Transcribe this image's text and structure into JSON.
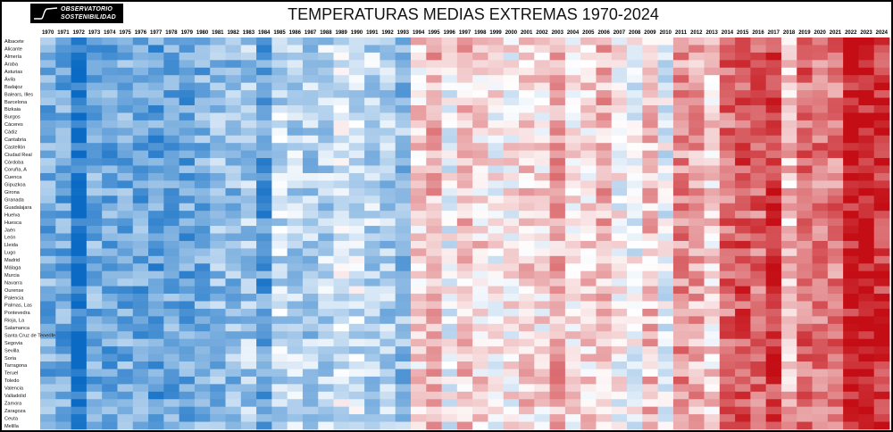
{
  "logo": {
    "line1": "OBSERVATORIO",
    "line2": "SOSTENIBILIDAD"
  },
  "chart_data": {
    "type": "heatmap",
    "title": "TEMPERATURAS  MEDIAS EXTREMAS 1970-2024",
    "x": [
      1970,
      1971,
      1972,
      1973,
      1974,
      1975,
      1976,
      1977,
      1978,
      1979,
      1980,
      1981,
      1982,
      1983,
      1984,
      1985,
      1986,
      1987,
      1988,
      1989,
      1990,
      1991,
      1992,
      1993,
      1994,
      1995,
      1996,
      1997,
      1998,
      1999,
      2000,
      2001,
      2002,
      2003,
      2004,
      2005,
      2006,
      2007,
      2008,
      2009,
      2010,
      2011,
      2012,
      2013,
      2014,
      2015,
      2016,
      2017,
      2018,
      2019,
      2020,
      2021,
      2022,
      2023,
      2024
    ],
    "y": [
      "Albacete",
      "Alicante",
      "Almería",
      "Araba",
      "Asturias",
      "Ávila",
      "Badajoz",
      "Balears, Illes",
      "Barcelona",
      "Bizkaia",
      "Burgos",
      "Cáceres",
      "Cádiz",
      "Cantabria",
      "Castellón",
      "Ciudad Real",
      "Córdoba",
      "Coruña, A",
      "Cuenca",
      "Gipuzkoa",
      "Girona",
      "Granada",
      "Guadalajara",
      "Huelva",
      "Huesca",
      "Jaén",
      "León",
      "Lleida",
      "Lugo",
      "Madrid",
      "Málaga",
      "Murcia",
      "Navarra",
      "Ourense",
      "Palencia",
      "Palmas, Las",
      "Pontevedra",
      "Rioja, La",
      "Salamanca",
      "Santa Cruz de Tenerife",
      "Segovia",
      "Sevilla",
      "Soria",
      "Tarragona",
      "Teruel",
      "Toledo",
      "Valencia",
      "Valladolid",
      "Zamora",
      "Zaragoza",
      "Ceuta",
      "Melilla"
    ],
    "color_scale": {
      "cold": "#0b6bc4",
      "neutral": "#ffffff",
      "hot": "#c40d14"
    },
    "value_range": [
      -1,
      1
    ],
    "year_anomaly": [
      -0.55,
      -0.6,
      -0.95,
      -0.55,
      -0.6,
      -0.55,
      -0.6,
      -0.65,
      -0.6,
      -0.6,
      -0.55,
      -0.45,
      -0.45,
      -0.35,
      -0.65,
      -0.25,
      -0.3,
      -0.35,
      -0.3,
      -0.15,
      -0.2,
      -0.3,
      -0.35,
      -0.45,
      0.15,
      0.3,
      -0.05,
      0.25,
      0.15,
      0.05,
      0.05,
      0.2,
      0.1,
      0.35,
      0.1,
      0.15,
      0.3,
      0.0,
      -0.05,
      0.25,
      -0.1,
      0.45,
      0.35,
      0.15,
      0.6,
      0.7,
      0.6,
      0.8,
      0.25,
      0.6,
      0.55,
      0.55,
      0.95,
      0.95,
      0.85
    ]
  }
}
